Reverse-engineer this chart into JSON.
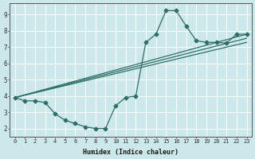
{
  "xlabel": "Humidex (Indice chaleur)",
  "ylabel": "",
  "bg_color": "#cde8ea",
  "line_color": "#2d6e65",
  "xlim": [
    -0.5,
    23.5
  ],
  "ylim": [
    1.5,
    9.7
  ],
  "xticks": [
    0,
    1,
    2,
    3,
    4,
    5,
    6,
    7,
    8,
    9,
    10,
    11,
    12,
    13,
    14,
    15,
    16,
    17,
    18,
    19,
    20,
    21,
    22,
    23
  ],
  "yticks": [
    2,
    3,
    4,
    5,
    6,
    7,
    8,
    9
  ],
  "series": [
    {
      "x": [
        0,
        1,
        2,
        3,
        4,
        5,
        6,
        7,
        8,
        9,
        10,
        11,
        12,
        13,
        14,
        15,
        16,
        17,
        18,
        19,
        20,
        21,
        22,
        23
      ],
      "y": [
        3.9,
        3.7,
        3.7,
        3.6,
        2.9,
        2.5,
        2.3,
        2.1,
        2.0,
        2.0,
        3.4,
        3.9,
        4.0,
        7.3,
        7.8,
        9.25,
        9.25,
        8.3,
        7.4,
        7.3,
        7.3,
        7.25,
        7.8,
        7.8
      ],
      "marker": "D",
      "markersize": 2.5,
      "linewidth": 0.9
    },
    {
      "x": [
        0,
        23
      ],
      "y": [
        3.9,
        7.8
      ],
      "marker": null,
      "linewidth": 0.9
    },
    {
      "x": [
        0,
        23
      ],
      "y": [
        3.9,
        7.55
      ],
      "marker": null,
      "linewidth": 0.9
    },
    {
      "x": [
        0,
        23
      ],
      "y": [
        3.9,
        7.3
      ],
      "marker": null,
      "linewidth": 0.9
    }
  ],
  "grid_color": "#ffffff",
  "grid_linewidth": 0.7,
  "xlabel_fontsize": 6.0,
  "tick_fontsize_x": 5.0,
  "tick_fontsize_y": 5.5
}
